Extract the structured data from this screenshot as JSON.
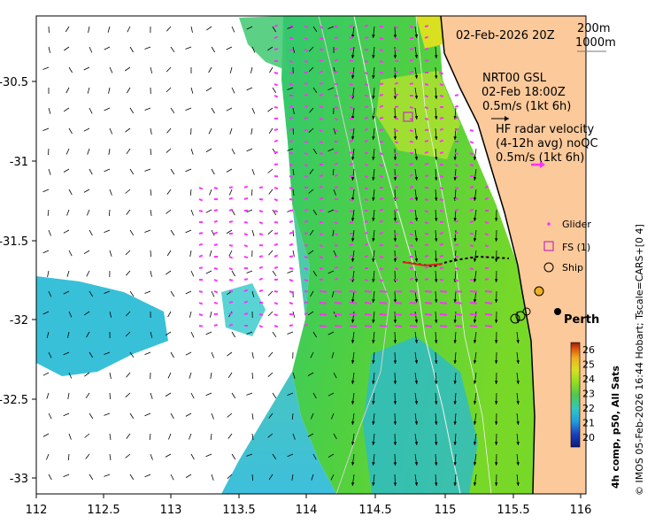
{
  "header": {
    "datetime": "02-Feb-2026 20Z",
    "isobath_1": "200m",
    "isobath_2": "1000m"
  },
  "nrt": {
    "line1": "NRT00 GSL",
    "line2": "02-Feb 18:00Z",
    "line3": "0.5m/s (1kt 6h)"
  },
  "hf_radar": {
    "line1": "HF radar velocity",
    "line2": "(4-12h avg) noQC",
    "line3": "0.5m/s (1kt 6h)"
  },
  "legend": {
    "glider": "Glider",
    "fs": "FS (1)",
    "ship": "Ship"
  },
  "place": {
    "perth": "Perth"
  },
  "axes": {
    "x_ticks": [
      "112",
      "112.5",
      "113",
      "113.5",
      "114",
      "114.5",
      "115",
      "115.5",
      "116"
    ],
    "y_ticks": [
      "-30.5",
      "-31",
      "-31.5",
      "-32",
      "-32.5",
      "-33"
    ]
  },
  "colorbar": {
    "label": "4h comp, p50, All Sats",
    "ticks": [
      "26",
      "25",
      "24",
      "23",
      "22",
      "21",
      "20"
    ],
    "colors": [
      "#0a1a80",
      "#1a40c0",
      "#20a0e0",
      "#30c8c0",
      "#50c850",
      "#90e020",
      "#d8e020",
      "#f0b020",
      "#e06010",
      "#a01808"
    ]
  },
  "credit": "© IMOS 05-Feb-2026 16:44 Hobart; Tscale=CARS+[0 4]",
  "colors": {
    "land": "#fbc99a",
    "current_vector": "#000000",
    "radar_vector": "#ff30ff",
    "glider": "#ff30ff",
    "fs_marker": "#c030c0",
    "track": "#e02020"
  }
}
